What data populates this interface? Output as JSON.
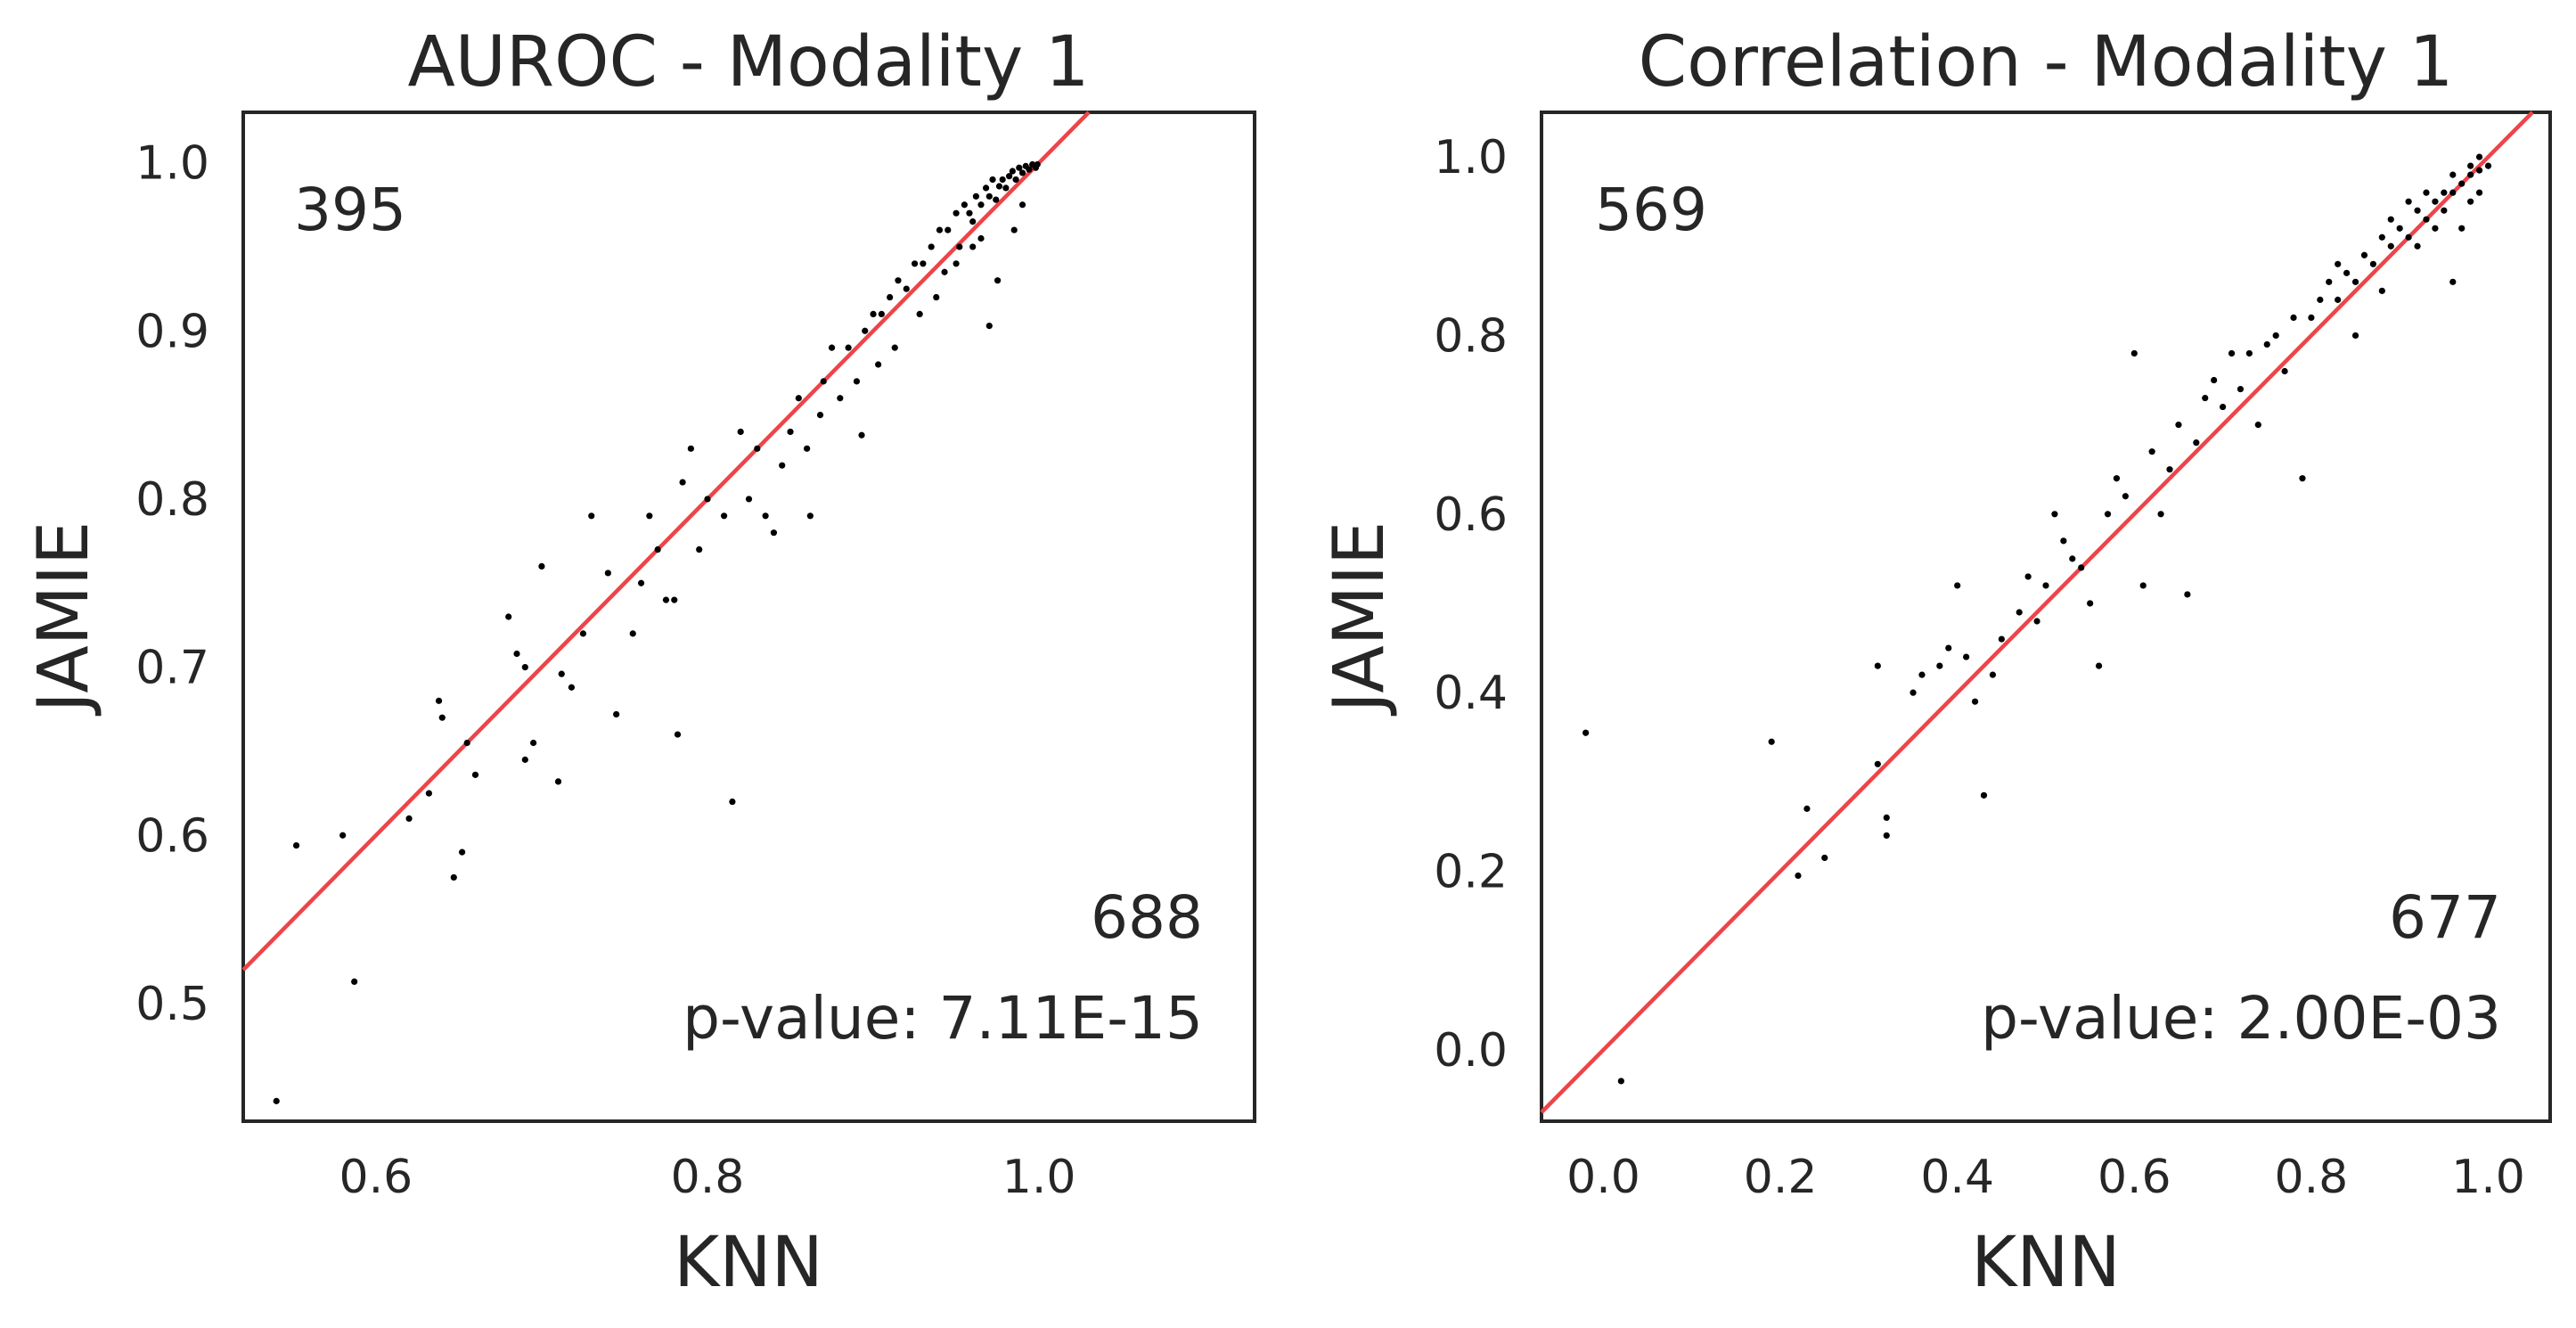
{
  "chart_data": [
    {
      "type": "scatter",
      "title": "AUROC - Modality 1",
      "xlabel": "KNN",
      "ylabel": "JAMIE",
      "xlim": [
        0.52,
        1.13
      ],
      "ylim": [
        0.43,
        1.03
      ],
      "xticks": [
        0.6,
        0.8,
        1.0
      ],
      "xtick_labels": [
        "0.6",
        "0.8",
        "1.0"
      ],
      "yticks": [
        0.5,
        0.6,
        0.7,
        0.8,
        0.9,
        1.0
      ],
      "ytick_labels": [
        "0.5",
        "0.6",
        "0.7",
        "0.8",
        "0.9",
        "1.0"
      ],
      "grid": false,
      "reference_line": {
        "slope": 1,
        "intercept": 0,
        "color": "#ee4448"
      },
      "annotations": {
        "top_left": "395",
        "bottom_right_count": "688",
        "p_value": "p-value: 7.11E-15"
      },
      "series": [
        {
          "color": "#000000",
          "points": [
            [
              0.54,
              0.442
            ],
            [
              0.587,
              0.513
            ],
            [
              0.552,
              0.594
            ],
            [
              0.58,
              0.6
            ],
            [
              0.62,
              0.61
            ],
            [
              0.647,
              0.575
            ],
            [
              0.652,
              0.59
            ],
            [
              0.632,
              0.625
            ],
            [
              0.638,
              0.68
            ],
            [
              0.64,
              0.67
            ],
            [
              0.655,
              0.655
            ],
            [
              0.66,
              0.636
            ],
            [
              0.68,
              0.73
            ],
            [
              0.685,
              0.708
            ],
            [
              0.69,
              0.7
            ],
            [
              0.69,
              0.645
            ],
            [
              0.695,
              0.655
            ],
            [
              0.7,
              0.76
            ],
            [
              0.71,
              0.632
            ],
            [
              0.712,
              0.696
            ],
            [
              0.718,
              0.688
            ],
            [
              0.725,
              0.72
            ],
            [
              0.73,
              0.79
            ],
            [
              0.74,
              0.756
            ],
            [
              0.745,
              0.672
            ],
            [
              0.755,
              0.72
            ],
            [
              0.76,
              0.75
            ],
            [
              0.765,
              0.79
            ],
            [
              0.77,
              0.77
            ],
            [
              0.775,
              0.74
            ],
            [
              0.78,
              0.74
            ],
            [
              0.782,
              0.66
            ],
            [
              0.785,
              0.81
            ],
            [
              0.79,
              0.83
            ],
            [
              0.795,
              0.77
            ],
            [
              0.8,
              0.8
            ],
            [
              0.81,
              0.79
            ],
            [
              0.815,
              0.62
            ],
            [
              0.82,
              0.84
            ],
            [
              0.825,
              0.8
            ],
            [
              0.83,
              0.83
            ],
            [
              0.835,
              0.79
            ],
            [
              0.84,
              0.78
            ],
            [
              0.845,
              0.82
            ],
            [
              0.85,
              0.84
            ],
            [
              0.855,
              0.86
            ],
            [
              0.86,
              0.83
            ],
            [
              0.862,
              0.79
            ],
            [
              0.868,
              0.85
            ],
            [
              0.87,
              0.87
            ],
            [
              0.875,
              0.89
            ],
            [
              0.88,
              0.86
            ],
            [
              0.885,
              0.89
            ],
            [
              0.89,
              0.87
            ],
            [
              0.893,
              0.838
            ],
            [
              0.895,
              0.9
            ],
            [
              0.9,
              0.91
            ],
            [
              0.903,
              0.88
            ],
            [
              0.905,
              0.91
            ],
            [
              0.91,
              0.92
            ],
            [
              0.913,
              0.89
            ],
            [
              0.915,
              0.93
            ],
            [
              0.92,
              0.925
            ],
            [
              0.925,
              0.94
            ],
            [
              0.928,
              0.91
            ],
            [
              0.93,
              0.94
            ],
            [
              0.935,
              0.95
            ],
            [
              0.938,
              0.92
            ],
            [
              0.94,
              0.96
            ],
            [
              0.943,
              0.935
            ],
            [
              0.945,
              0.96
            ],
            [
              0.95,
              0.97
            ],
            [
              0.952,
              0.95
            ],
            [
              0.955,
              0.975
            ],
            [
              0.958,
              0.97
            ],
            [
              0.96,
              0.965
            ],
            [
              0.962,
              0.98
            ],
            [
              0.965,
              0.975
            ],
            [
              0.968,
              0.985
            ],
            [
              0.97,
              0.98
            ],
            [
              0.972,
              0.99
            ],
            [
              0.974,
              0.978
            ],
            [
              0.976,
              0.986
            ],
            [
              0.978,
              0.99
            ],
            [
              0.98,
              0.985
            ],
            [
              0.982,
              0.992
            ],
            [
              0.984,
              0.995
            ],
            [
              0.986,
              0.99
            ],
            [
              0.988,
              0.997
            ],
            [
              0.99,
              0.994
            ],
            [
              0.992,
              0.998
            ],
            [
              0.994,
              0.996
            ],
            [
              0.996,
              0.999
            ],
            [
              0.998,
              0.997
            ],
            [
              0.999,
              0.999
            ],
            [
              0.975,
              0.93
            ],
            [
              0.97,
              0.903
            ],
            [
              0.96,
              0.95
            ],
            [
              0.985,
              0.96
            ],
            [
              0.99,
              0.975
            ],
            [
              0.95,
              0.94
            ],
            [
              0.965,
              0.955
            ]
          ]
        }
      ]
    },
    {
      "type": "scatter",
      "title": "Correlation - Modality 1",
      "xlabel": "KNN",
      "ylabel": "JAMIE",
      "xlim": [
        -0.07,
        1.07
      ],
      "ylim": [
        -0.08,
        1.05
      ],
      "xticks": [
        0.0,
        0.2,
        0.4,
        0.6,
        0.8,
        1.0
      ],
      "xtick_labels": [
        "0.0",
        "0.2",
        "0.4",
        "0.6",
        "0.8",
        "1.0"
      ],
      "yticks": [
        0.0,
        0.2,
        0.4,
        0.6,
        0.8,
        1.0
      ],
      "ytick_labels": [
        "0.0",
        "0.2",
        "0.4",
        "0.6",
        "0.8",
        "1.0"
      ],
      "grid": false,
      "reference_line": {
        "slope": 1,
        "intercept": 0,
        "color": "#ee4448"
      },
      "annotations": {
        "top_left": "569",
        "bottom_right_count": "677",
        "p_value": "p-value: 2.00E-03"
      },
      "series": [
        {
          "color": "#000000",
          "points": [
            [
              -0.02,
              0.355
            ],
            [
              0.02,
              -0.035
            ],
            [
              0.19,
              0.345
            ],
            [
              0.22,
              0.195
            ],
            [
              0.23,
              0.27
            ],
            [
              0.25,
              0.215
            ],
            [
              0.31,
              0.32
            ],
            [
              0.32,
              0.24
            ],
            [
              0.32,
              0.26
            ],
            [
              0.31,
              0.43
            ],
            [
              0.35,
              0.4
            ],
            [
              0.36,
              0.42
            ],
            [
              0.38,
              0.43
            ],
            [
              0.39,
              0.45
            ],
            [
              0.4,
              0.52
            ],
            [
              0.41,
              0.44
            ],
            [
              0.42,
              0.39
            ],
            [
              0.43,
              0.285
            ],
            [
              0.44,
              0.42
            ],
            [
              0.45,
              0.46
            ],
            [
              0.47,
              0.49
            ],
            [
              0.48,
              0.53
            ],
            [
              0.49,
              0.48
            ],
            [
              0.5,
              0.52
            ],
            [
              0.51,
              0.6
            ],
            [
              0.52,
              0.57
            ],
            [
              0.53,
              0.55
            ],
            [
              0.54,
              0.54
            ],
            [
              0.55,
              0.5
            ],
            [
              0.56,
              0.43
            ],
            [
              0.57,
              0.6
            ],
            [
              0.58,
              0.64
            ],
            [
              0.59,
              0.62
            ],
            [
              0.6,
              0.78
            ],
            [
              0.61,
              0.52
            ],
            [
              0.62,
              0.67
            ],
            [
              0.63,
              0.6
            ],
            [
              0.64,
              0.65
            ],
            [
              0.65,
              0.7
            ],
            [
              0.66,
              0.51
            ],
            [
              0.67,
              0.68
            ],
            [
              0.68,
              0.73
            ],
            [
              0.69,
              0.75
            ],
            [
              0.7,
              0.72
            ],
            [
              0.71,
              0.78
            ],
            [
              0.72,
              0.74
            ],
            [
              0.73,
              0.78
            ],
            [
              0.74,
              0.7
            ],
            [
              0.75,
              0.79
            ],
            [
              0.76,
              0.8
            ],
            [
              0.77,
              0.76
            ],
            [
              0.78,
              0.82
            ],
            [
              0.79,
              0.64
            ],
            [
              0.8,
              0.82
            ],
            [
              0.81,
              0.84
            ],
            [
              0.82,
              0.86
            ],
            [
              0.83,
              0.84
            ],
            [
              0.84,
              0.87
            ],
            [
              0.85,
              0.86
            ],
            [
              0.86,
              0.89
            ],
            [
              0.87,
              0.88
            ],
            [
              0.88,
              0.91
            ],
            [
              0.89,
              0.9
            ],
            [
              0.9,
              0.92
            ],
            [
              0.91,
              0.91
            ],
            [
              0.92,
              0.94
            ],
            [
              0.93,
              0.93
            ],
            [
              0.94,
              0.95
            ],
            [
              0.95,
              0.94
            ],
            [
              0.96,
              0.96
            ],
            [
              0.97,
              0.97
            ],
            [
              0.98,
              0.98
            ],
            [
              0.99,
              0.985
            ],
            [
              1.0,
              0.99
            ],
            [
              0.96,
              0.86
            ],
            [
              0.98,
              0.95
            ],
            [
              0.97,
              0.92
            ],
            [
              0.95,
              0.96
            ],
            [
              0.93,
              0.96
            ],
            [
              0.91,
              0.95
            ],
            [
              0.89,
              0.93
            ],
            [
              0.92,
              0.9
            ],
            [
              0.94,
              0.92
            ],
            [
              0.99,
              0.96
            ],
            [
              0.85,
              0.8
            ],
            [
              0.83,
              0.88
            ],
            [
              0.88,
              0.85
            ],
            [
              0.96,
              0.98
            ],
            [
              0.98,
              0.99
            ],
            [
              0.99,
              1.0
            ]
          ]
        }
      ]
    }
  ]
}
